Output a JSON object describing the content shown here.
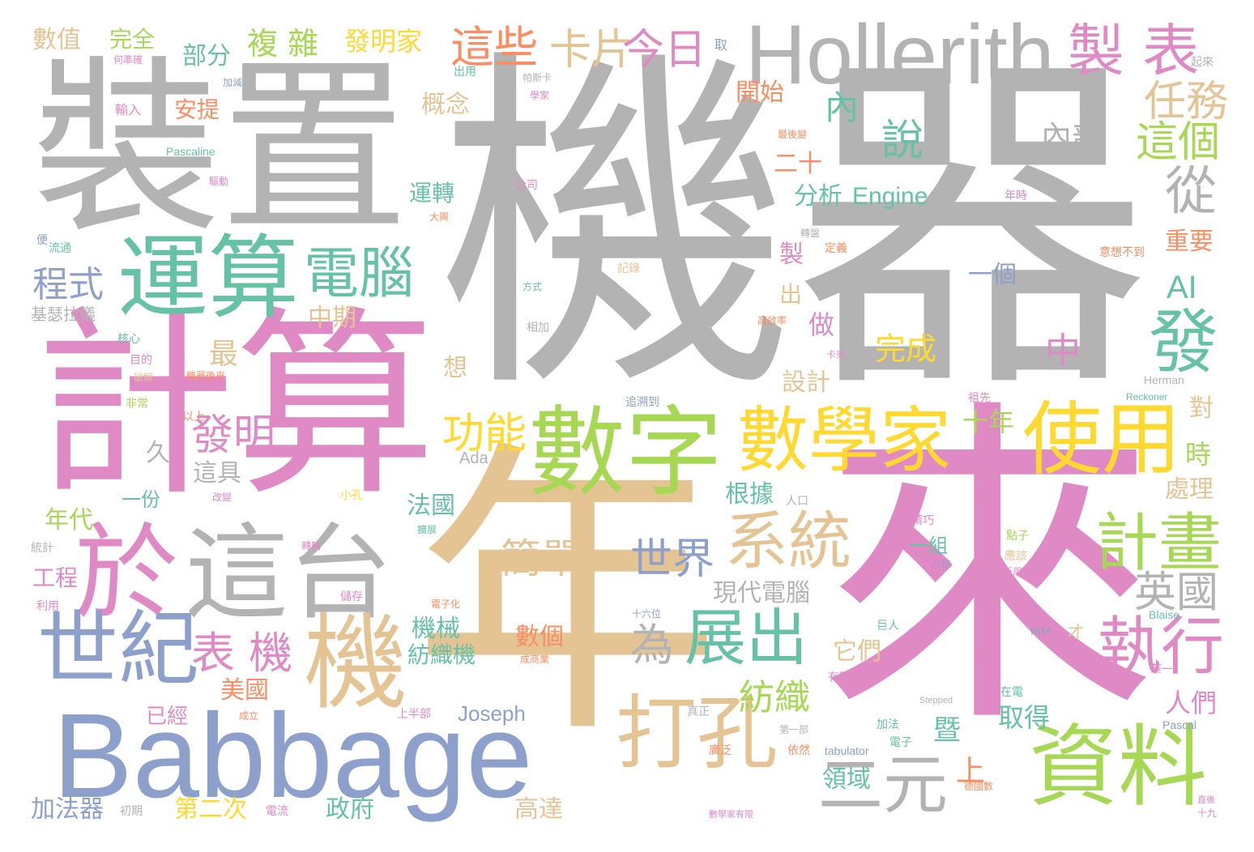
{
  "palette": {
    "pink": "#e08ac5",
    "gray": "#b3b3b3",
    "green": "#66c2a5",
    "lime": "#a6d854",
    "blue": "#8da0cb",
    "yellow": "#ffd92f",
    "tan": "#e5c494",
    "orange": "#fc8d62"
  },
  "words": [
    {
      "t": "機器",
      "c": "gray"
    },
    {
      "t": "來",
      "c": "pink"
    },
    {
      "t": "年",
      "c": "tan"
    },
    {
      "t": "裝置",
      "c": "gray"
    },
    {
      "t": "計算",
      "c": "pink"
    },
    {
      "t": "Babbage",
      "c": "blue"
    },
    {
      "t": "Hollerith",
      "c": "gray"
    },
    {
      "t": "運算",
      "c": "green"
    },
    {
      "t": "數字",
      "c": "lime"
    },
    {
      "t": "於",
      "c": "pink"
    },
    {
      "t": "這台",
      "c": "gray"
    },
    {
      "t": "數學家",
      "c": "yellow"
    },
    {
      "t": "資料",
      "c": "lime"
    },
    {
      "t": "使用",
      "c": "yellow"
    },
    {
      "t": "世紀",
      "c": "blue"
    },
    {
      "t": "機",
      "c": "tan"
    },
    {
      "t": "打孔",
      "c": "tan"
    },
    {
      "t": "製 表",
      "c": "pink"
    },
    {
      "t": "電腦",
      "c": "green"
    },
    {
      "t": "展出",
      "c": "green"
    },
    {
      "t": "系統",
      "c": "tan"
    },
    {
      "t": "二元",
      "c": "gray"
    },
    {
      "t": "計畫",
      "c": "lime"
    },
    {
      "t": "執行",
      "c": "pink"
    },
    {
      "t": "發",
      "c": "green"
    },
    {
      "t": "從",
      "c": "gray"
    },
    {
      "t": "卡片",
      "c": "tan"
    },
    {
      "t": "今日",
      "c": "pink"
    },
    {
      "t": "這些",
      "c": "orange"
    },
    {
      "t": "表 機",
      "c": "pink"
    },
    {
      "t": "任務",
      "c": "tan"
    },
    {
      "t": "這個",
      "c": "lime"
    },
    {
      "t": "說",
      "c": "green"
    },
    {
      "t": "內部",
      "c": "gray"
    },
    {
      "t": "內",
      "c": "green"
    },
    {
      "t": "英國",
      "c": "gray"
    },
    {
      "t": "世界",
      "c": "blue"
    },
    {
      "t": "功能",
      "c": "yellow"
    },
    {
      "t": "發明",
      "c": "pink"
    },
    {
      "t": "簡單",
      "c": "tan"
    },
    {
      "t": "為",
      "c": "gray"
    },
    {
      "t": "AI",
      "c": "green"
    },
    {
      "t": "中",
      "c": "pink"
    },
    {
      "t": "完成",
      "c": "yellow"
    },
    {
      "t": "程式",
      "c": "blue"
    },
    {
      "t": "紡織",
      "c": "lime"
    },
    {
      "t": "最",
      "c": "tan"
    },
    {
      "t": "複 雜",
      "c": "lime"
    },
    {
      "t": "發明家",
      "c": "yellow"
    },
    {
      "t": "數值",
      "c": "tan"
    },
    {
      "t": "完全",
      "c": "lime"
    },
    {
      "t": "部分",
      "c": "green"
    },
    {
      "t": "分析",
      "c": "green"
    },
    {
      "t": "Engine",
      "c": "green"
    },
    {
      "t": "運轉",
      "c": "green"
    },
    {
      "t": "概念",
      "c": "tan"
    },
    {
      "t": "開始",
      "c": "orange"
    },
    {
      "t": "二十",
      "c": "orange"
    },
    {
      "t": "重要",
      "c": "orange"
    },
    {
      "t": "一個",
      "c": "blue"
    },
    {
      "t": "安提",
      "c": "orange"
    },
    {
      "t": "中期",
      "c": "tan"
    },
    {
      "t": "十年",
      "c": "lime"
    },
    {
      "t": "時",
      "c": "lime"
    },
    {
      "t": "人們",
      "c": "pink"
    },
    {
      "t": "處理",
      "c": "tan"
    },
    {
      "t": "對",
      "c": "tan"
    },
    {
      "t": "設計",
      "c": "tan"
    },
    {
      "t": "根據",
      "c": "green"
    },
    {
      "t": "法國",
      "c": "green"
    },
    {
      "t": "現代電腦",
      "c": "gray"
    },
    {
      "t": "機械",
      "c": "green"
    },
    {
      "t": "紡織機",
      "c": "green"
    },
    {
      "t": "數個",
      "c": "orange"
    },
    {
      "t": "它們",
      "c": "tan"
    },
    {
      "t": "取得",
      "c": "green"
    },
    {
      "t": "美國",
      "c": "orange"
    },
    {
      "t": "已經",
      "c": "pink"
    },
    {
      "t": "Joseph",
      "c": "blue"
    },
    {
      "t": "這具",
      "c": "gray"
    },
    {
      "t": "年代",
      "c": "lime"
    },
    {
      "t": "工程",
      "c": "pink"
    },
    {
      "t": "一份",
      "c": "green"
    },
    {
      "t": "久",
      "c": "gray"
    },
    {
      "t": "想",
      "c": "tan"
    },
    {
      "t": "做",
      "c": "pink"
    },
    {
      "t": "出",
      "c": "tan"
    },
    {
      "t": "製",
      "c": "pink"
    },
    {
      "t": "加法器",
      "c": "blue"
    },
    {
      "t": "第二次",
      "c": "yellow"
    },
    {
      "t": "政府",
      "c": "green"
    },
    {
      "t": "高達",
      "c": "tan"
    },
    {
      "t": "領域",
      "c": "green"
    },
    {
      "t": "上",
      "c": "orange"
    },
    {
      "t": "暨",
      "c": "green"
    },
    {
      "t": "一組",
      "c": "green"
    },
    {
      "t": "基瑟拉儀",
      "c": "gray"
    },
    {
      "t": "Ada",
      "c": "gray"
    },
    {
      "t": "輸入",
      "c": "pink"
    },
    {
      "t": "Pascaline",
      "c": "green"
    },
    {
      "t": "帕斯卡",
      "c": "gray"
    },
    {
      "t": "出用",
      "c": "green"
    },
    {
      "t": "學家",
      "c": "pink"
    },
    {
      "t": "流通",
      "c": "green"
    },
    {
      "t": "核心",
      "c": "green"
    },
    {
      "t": "目的",
      "c": "pink"
    },
    {
      "t": "破解",
      "c": "tan"
    },
    {
      "t": "機器後來",
      "c": "orange"
    },
    {
      "t": "以上",
      "c": "orange"
    },
    {
      "t": "非常",
      "c": "lime"
    },
    {
      "t": "小孔",
      "c": "yellow"
    },
    {
      "t": "改變",
      "c": "pink"
    },
    {
      "t": "儲存",
      "c": "pink"
    },
    {
      "t": "轉輪",
      "c": "pink"
    },
    {
      "t": "擴展",
      "c": "green"
    },
    {
      "t": "上半部",
      "c": "pink"
    },
    {
      "t": "成立",
      "c": "orange"
    },
    {
      "t": "公司",
      "c": "pink"
    },
    {
      "t": "相加",
      "c": "gray"
    },
    {
      "t": "記錄",
      "c": "tan"
    },
    {
      "t": "方式",
      "c": "green"
    },
    {
      "t": "定義",
      "c": "orange"
    },
    {
      "t": "轉盤",
      "c": "gray"
    },
    {
      "t": "年時",
      "c": "pink"
    },
    {
      "t": "意想不到",
      "c": "orange"
    },
    {
      "t": "最後變",
      "c": "orange"
    },
    {
      "t": "高效率",
      "c": "orange"
    },
    {
      "t": "追溯到",
      "c": "blue"
    },
    {
      "t": "人口",
      "c": "gray"
    },
    {
      "t": "精巧",
      "c": "pink"
    },
    {
      "t": "點子",
      "c": "lime"
    },
    {
      "t": "應該",
      "c": "tan"
    },
    {
      "t": "有限",
      "c": "pink"
    },
    {
      "t": "電子化",
      "c": "orange"
    },
    {
      "t": "成商業",
      "c": "orange"
    },
    {
      "t": "巨人",
      "c": "green"
    },
    {
      "t": "IBM",
      "c": "blue"
    },
    {
      "t": "才",
      "c": "tan"
    },
    {
      "t": "Blaise",
      "c": "green"
    },
    {
      "t": "Herman",
      "c": "gray"
    },
    {
      "t": "Reckoner",
      "c": "green"
    },
    {
      "t": "祖先",
      "c": "pink"
    },
    {
      "t": "卡來",
      "c": "pink"
    },
    {
      "t": "加法",
      "c": "green"
    },
    {
      "t": "電子",
      "c": "green"
    },
    {
      "t": "在電",
      "c": "green"
    },
    {
      "t": "華一",
      "c": "pink"
    },
    {
      "t": "Pascal",
      "c": "blue"
    },
    {
      "t": "Stepped",
      "c": "gray"
    },
    {
      "t": "廣泛",
      "c": "orange"
    },
    {
      "t": "依然",
      "c": "orange"
    },
    {
      "t": "tabulator",
      "c": "blue"
    },
    {
      "t": "電流",
      "c": "pink"
    },
    {
      "t": "初期",
      "c": "gray"
    },
    {
      "t": "十六位",
      "c": "blue"
    },
    {
      "t": "利用",
      "c": "pink"
    },
    {
      "t": "統計",
      "c": "gray"
    },
    {
      "t": "第一部",
      "c": "gray"
    },
    {
      "t": "真正",
      "c": "gray"
    },
    {
      "t": "德國數",
      "c": "orange"
    },
    {
      "t": "數學家有限",
      "c": "pink"
    },
    {
      "t": "起來",
      "c": "gray"
    },
    {
      "t": "取",
      "c": "blue"
    },
    {
      "t": "何準確",
      "c": "pink"
    },
    {
      "t": "加減",
      "c": "blue"
    },
    {
      "t": "驅動",
      "c": "pink"
    },
    {
      "t": "便",
      "c": "blue"
    },
    {
      "t": "大興",
      "c": "orange"
    },
    {
      "t": "八位",
      "c": "blue"
    },
    {
      "t": "所用",
      "c": "pink"
    },
    {
      "t": "十九",
      "c": "pink"
    },
    {
      "t": "直後",
      "c": "pink"
    }
  ]
}
